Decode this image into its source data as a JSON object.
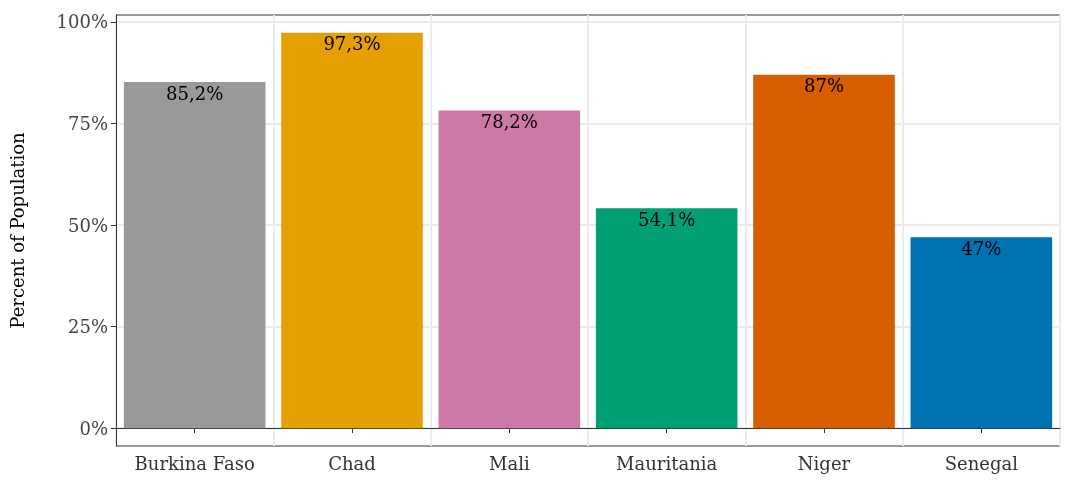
{
  "chart_data": {
    "type": "bar",
    "ylabel": "Percent of Population",
    "categories": [
      "Burkina Faso",
      "Chad",
      "Mali",
      "Mauritania",
      "Niger",
      "Senegal"
    ],
    "values": [
      85.2,
      97.3,
      78.2,
      54.1,
      87,
      47
    ],
    "colors": [
      "#999999",
      "#e69f00",
      "#cc79a7",
      "#009e73",
      "#d55e00",
      "#0072b2"
    ],
    "value_labels": [
      "85,2%",
      "97,3%",
      "78,2%",
      "54,1%",
      "87%",
      "47%"
    ],
    "ylim": [
      -4.4,
      101.7
    ],
    "yticks": [
      {
        "value": 0,
        "label": "0%"
      },
      {
        "value": 25,
        "label": "25%"
      },
      {
        "value": 50,
        "label": "50%"
      },
      {
        "value": 75,
        "label": "75%"
      },
      {
        "value": 100,
        "label": "100%"
      }
    ],
    "grid": true
  }
}
